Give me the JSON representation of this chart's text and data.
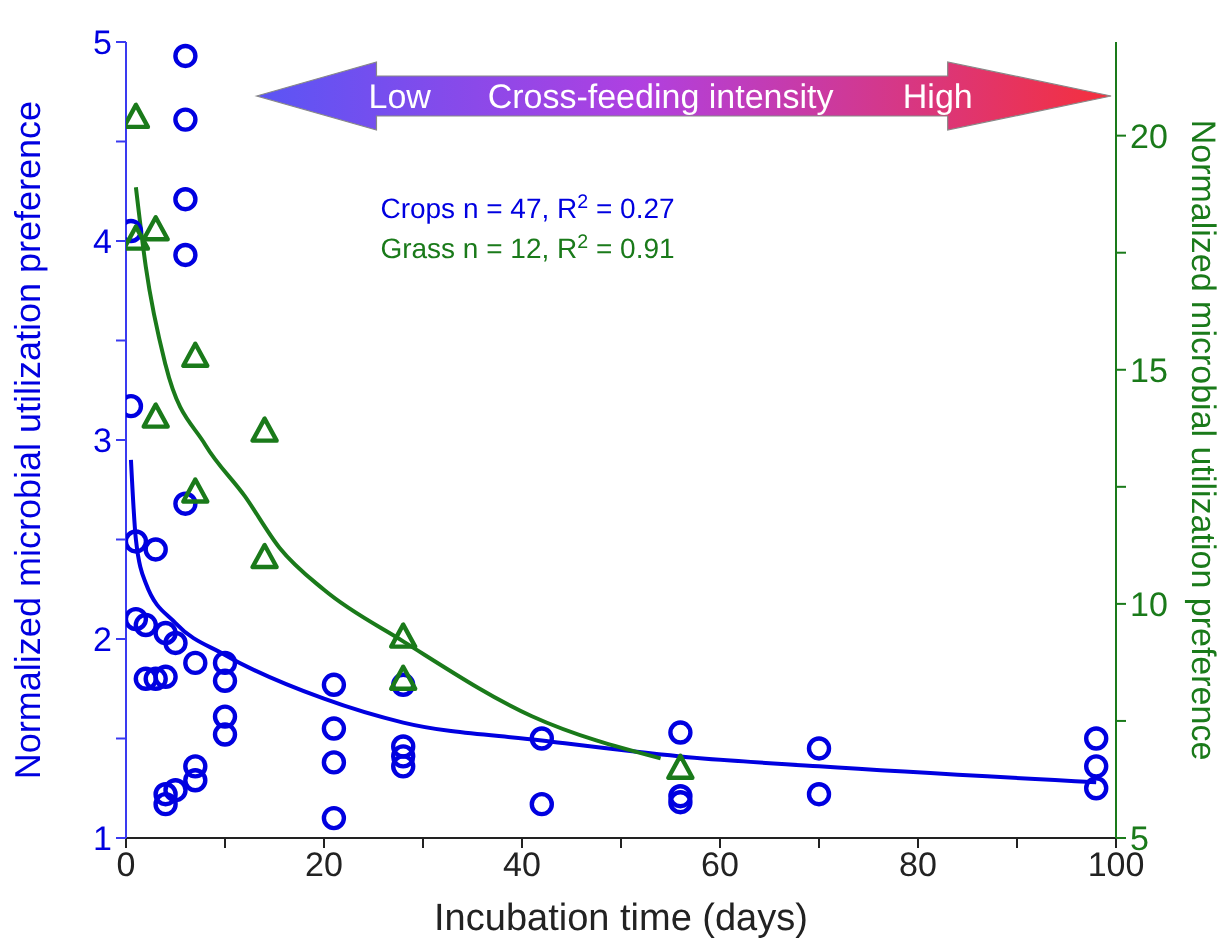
{
  "chart_data": {
    "type": "scatter",
    "xlabel": "Incubation time (days)",
    "ylabel": "Normalized microbial utilization preference",
    "y2label": "Normalized microbial utilization preference",
    "xlim": [
      0,
      100
    ],
    "xticks": [
      0,
      {
        "value": 10,
        "label": null
      },
      20,
      {
        "value": 30,
        "label": null
      },
      40,
      {
        "value": 50,
        "label": null
      },
      60,
      {
        "value": 70,
        "label": null
      },
      80,
      {
        "value": 90,
        "label": null
      },
      100
    ],
    "ylim": [
      1,
      5
    ],
    "yticks": [
      1,
      {
        "value": 1.5,
        "label": null
      },
      2,
      {
        "value": 2.5,
        "label": null
      },
      3,
      {
        "value": 3.5,
        "label": null
      },
      4,
      {
        "value": 4.5,
        "label": null
      },
      5
    ],
    "y2lim": [
      5,
      22
    ],
    "y2ticks": [
      5,
      {
        "value": 7.5,
        "label": null
      },
      10,
      {
        "value": 12.5,
        "label": null
      },
      15,
      {
        "value": 17.5,
        "label": null
      },
      20
    ],
    "annotations": [
      "Low",
      "Cross-feeding intensity",
      "High",
      "Crops n = 47, R$^{2}$ = 0.27",
      "Grass n = 12, R$^{2}$ = 0.91"
    ],
    "series": [
      {
        "marker": "circle",
        "color": "#0000e0",
        "x": [
          6,
          6,
          6,
          6,
          0.5,
          0.5,
          6,
          1,
          3,
          1,
          2,
          4,
          5,
          7,
          10,
          2,
          3,
          4,
          10,
          10,
          10,
          7,
          7,
          5,
          4,
          4,
          21,
          21,
          21,
          21,
          28,
          28,
          28,
          28,
          42,
          42,
          56,
          56,
          56,
          70,
          70,
          98,
          98,
          98
        ],
        "values": [
          4.93,
          4.61,
          4.21,
          3.93,
          4.05,
          3.17,
          2.68,
          2.49,
          2.45,
          2.1,
          2.07,
          2.03,
          1.98,
          1.88,
          1.88,
          1.8,
          1.8,
          1.81,
          1.79,
          1.61,
          1.52,
          1.36,
          1.29,
          1.24,
          1.22,
          1.17,
          1.77,
          1.55,
          1.38,
          1.1,
          1.77,
          1.46,
          1.41,
          1.36,
          1.5,
          1.17,
          1.53,
          1.21,
          1.18,
          1.45,
          1.22,
          1.5,
          1.36,
          1.25
        ]
      },
      {
        "marker": "triangle",
        "axis": "y2",
        "color": "#1a7a1a",
        "x": [
          1,
          1,
          3,
          7,
          3,
          14,
          7,
          14,
          28,
          28,
          56
        ],
        "values": [
          20.4,
          17.8,
          18,
          15.3,
          14,
          13.7,
          12.4,
          11,
          9.3,
          8.4,
          6.5
        ]
      },
      {
        "type": "line",
        "marker": "none",
        "color": "#0000e0",
        "x": [
          0.5,
          1,
          2,
          5,
          10,
          20,
          28,
          42,
          56,
          70,
          98
        ],
        "values": [
          2.9,
          2.5,
          2.28,
          2.08,
          1.92,
          1.7,
          1.58,
          1.49,
          1.41,
          1.36,
          1.28
        ]
      },
      {
        "type": "line",
        "marker": "none",
        "axis": "y2",
        "color": "#1a7a1a",
        "x": [
          1,
          2,
          4,
          8,
          12,
          15.5,
          20,
          28,
          41,
          54
        ],
        "values": [
          18.9,
          17.2,
          15.1,
          13.4,
          12.3,
          11.2,
          10.3,
          9.2,
          7.6,
          6.7
        ]
      }
    ]
  }
}
